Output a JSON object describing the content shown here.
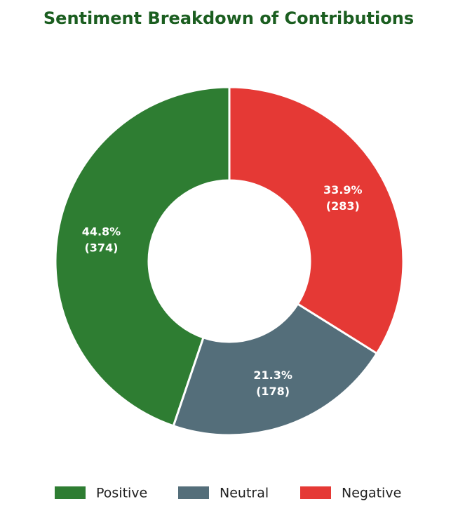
{
  "chart_data": {
    "type": "donut",
    "title": "Sentiment Breakdown of Contributions",
    "categories": [
      "Positive",
      "Neutral",
      "Negative"
    ],
    "values": [
      374,
      178,
      283
    ],
    "percent_labels": [
      "44.8%",
      "21.3%",
      "33.9%"
    ],
    "value_labels": [
      "(374)",
      "(178)",
      "(283)"
    ],
    "colors": [
      "#2e7d32",
      "#546e7a",
      "#e53935"
    ],
    "direction": "counterclockwise",
    "legend": "bottom"
  }
}
